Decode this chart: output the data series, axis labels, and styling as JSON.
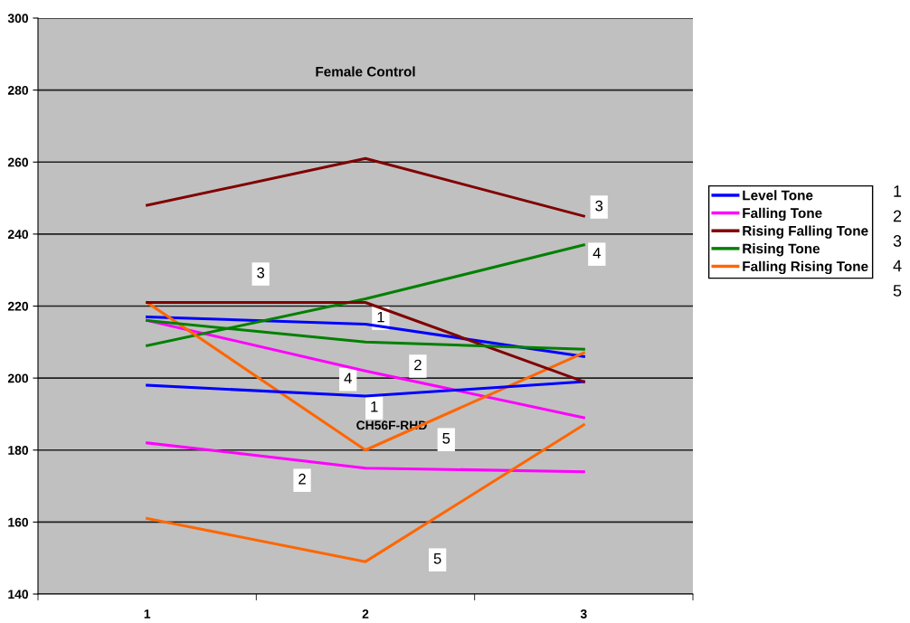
{
  "chart_data": {
    "type": "line",
    "title": "Female Control",
    "categories": [
      "1",
      "2",
      "3"
    ],
    "series": [
      {
        "name": "Level Tone",
        "color": "#0000ff",
        "values": [
          217,
          215,
          206
        ]
      },
      {
        "name": "Falling Tone",
        "color": "#ff00ff",
        "values": [
          216,
          202,
          189
        ]
      },
      {
        "name": "Rising Falling Tone",
        "color": "#800000",
        "values": [
          248,
          261,
          245
        ]
      },
      {
        "name": "Rising Tone",
        "color": "#008000",
        "values": [
          209,
          222,
          237
        ]
      },
      {
        "name": "Falling Rising Tone",
        "color": "#ff6600",
        "values": [
          221,
          180,
          207
        ]
      },
      {
        "color": "#0000ff",
        "values": [
          198,
          195,
          199
        ]
      },
      {
        "color": "#ff00ff",
        "values": [
          182,
          175,
          174
        ]
      },
      {
        "color": "#800000",
        "values": [
          221,
          221,
          199
        ]
      },
      {
        "color": "#008000",
        "values": [
          216,
          210,
          208
        ]
      },
      {
        "color": "#ff6600",
        "values": [
          161,
          149,
          187
        ]
      }
    ],
    "ylim": [
      140,
      300
    ],
    "yticks": [
      140,
      160,
      180,
      200,
      220,
      240,
      260,
      280,
      300
    ],
    "grid": "y",
    "legend": "right",
    "marker": "none",
    "line_style": "solid",
    "annotations": [
      "3",
      "4",
      "3",
      "1",
      "4",
      "2",
      "1",
      "5",
      "2",
      "5",
      "CH56F-RHD",
      "1",
      "2",
      "3",
      "4",
      "5"
    ]
  }
}
